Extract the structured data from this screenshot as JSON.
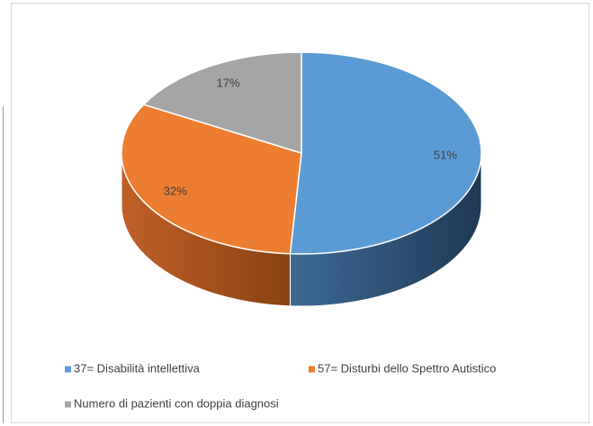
{
  "chart_data": {
    "type": "pie",
    "categories": [
      "37= Disabilità intellettiva",
      "57= Disturbi dello Spettro Autistico",
      "Numero di pazienti con doppia diagnosi"
    ],
    "values": [
      51,
      32,
      17
    ],
    "value_labels": [
      "51%",
      "32%",
      "17%"
    ],
    "colors": [
      "#5b9bd5",
      "#ed7d31",
      "#a5a5a5"
    ],
    "legend": "bottom"
  }
}
